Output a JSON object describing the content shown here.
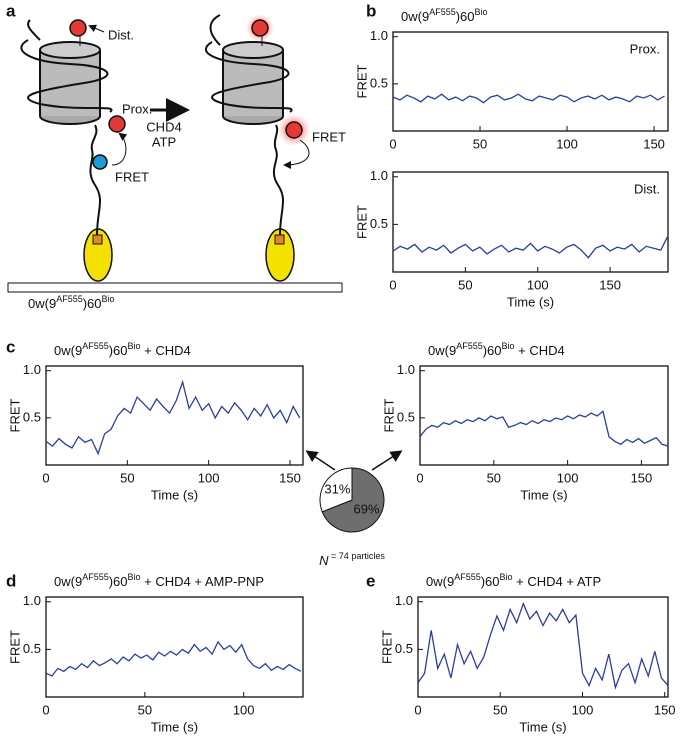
{
  "panel_labels": [
    "a",
    "b",
    "c",
    "d",
    "e"
  ],
  "diagram": {
    "dist": "Dist.",
    "prox": "Prox.",
    "enzyme": "CHD4",
    "nucleotide": "ATP",
    "fret_left": "FRET",
    "fret_right": "FRET",
    "substrate_parts": [
      "0w(9",
      "AF555",
      ")60",
      "Bio"
    ]
  },
  "chart_data": [
    {
      "type": "line",
      "title_parts": [
        "0w(9",
        "AF555",
        ")60",
        "Bio"
      ],
      "annotation": "Prox.",
      "ylabel": "FRET",
      "color": "#2c3e9c",
      "x": [
        0,
        4,
        8,
        12,
        16,
        20,
        24,
        28,
        32,
        36,
        40,
        44,
        48,
        52,
        56,
        60,
        64,
        68,
        72,
        76,
        80,
        84,
        88,
        92,
        96,
        100,
        104,
        108,
        112,
        116,
        120,
        124,
        128,
        132,
        136,
        140,
        144,
        148,
        152,
        156
      ],
      "values": [
        0.36,
        0.33,
        0.38,
        0.35,
        0.31,
        0.37,
        0.34,
        0.39,
        0.33,
        0.36,
        0.32,
        0.37,
        0.35,
        0.3,
        0.36,
        0.38,
        0.33,
        0.35,
        0.39,
        0.34,
        0.32,
        0.37,
        0.35,
        0.33,
        0.38,
        0.36,
        0.31,
        0.35,
        0.37,
        0.34,
        0.38,
        0.33,
        0.36,
        0.34,
        0.31,
        0.37,
        0.35,
        0.38,
        0.33,
        0.37
      ],
      "xlim": [
        0,
        158
      ],
      "ylim": [
        0,
        1.05
      ],
      "xticks": [
        0,
        50,
        100,
        150
      ],
      "yticks": [
        0.5,
        {
          "value": 1,
          "label": "1.0"
        }
      ]
    },
    {
      "type": "line",
      "title_parts": [],
      "annotation": "Dist.",
      "ylabel": "FRET",
      "xlabel": "Time (s)",
      "color": "#2c3e9c",
      "x": [
        0,
        5,
        10,
        15,
        20,
        25,
        30,
        35,
        40,
        45,
        50,
        55,
        60,
        65,
        70,
        75,
        80,
        85,
        90,
        95,
        100,
        105,
        110,
        115,
        120,
        125,
        130,
        135,
        140,
        145,
        150,
        155,
        160,
        165,
        170,
        175,
        180,
        185,
        190
      ],
      "values": [
        0.22,
        0.27,
        0.24,
        0.29,
        0.21,
        0.26,
        0.23,
        0.28,
        0.2,
        0.25,
        0.29,
        0.22,
        0.26,
        0.19,
        0.24,
        0.28,
        0.21,
        0.25,
        0.23,
        0.3,
        0.22,
        0.27,
        0.24,
        0.2,
        0.26,
        0.29,
        0.23,
        0.15,
        0.25,
        0.28,
        0.22,
        0.26,
        0.24,
        0.29,
        0.21,
        0.27,
        0.25,
        0.23,
        0.38
      ],
      "xlim": [
        0,
        190
      ],
      "ylim": [
        0,
        1.05
      ],
      "xticks": [
        0,
        50,
        100,
        150
      ],
      "yticks": [
        0.5,
        {
          "value": 1,
          "label": "1.0"
        }
      ]
    },
    {
      "type": "line",
      "title_parts": [
        "0w(9",
        "AF555",
        ")60",
        "Bio",
        " + CHD4"
      ],
      "ylabel": "FRET",
      "xlabel": "Time (s)",
      "color": "#2c3e9c",
      "x": [
        0,
        4,
        8,
        12,
        16,
        20,
        24,
        28,
        32,
        36,
        40,
        44,
        48,
        52,
        56,
        60,
        64,
        68,
        72,
        76,
        80,
        84,
        88,
        92,
        96,
        100,
        104,
        108,
        112,
        116,
        120,
        124,
        128,
        132,
        136,
        140,
        144,
        148,
        152,
        156
      ],
      "values": [
        0.25,
        0.2,
        0.28,
        0.22,
        0.18,
        0.3,
        0.24,
        0.27,
        0.12,
        0.33,
        0.38,
        0.52,
        0.6,
        0.55,
        0.72,
        0.65,
        0.58,
        0.7,
        0.62,
        0.55,
        0.68,
        0.88,
        0.6,
        0.72,
        0.58,
        0.65,
        0.5,
        0.62,
        0.55,
        0.66,
        0.58,
        0.48,
        0.6,
        0.52,
        0.64,
        0.5,
        0.58,
        0.45,
        0.62,
        0.5
      ],
      "xlim": [
        0,
        158
      ],
      "ylim": [
        0,
        1.05
      ],
      "xticks": [
        0,
        50,
        100,
        150
      ],
      "yticks": [
        0.5,
        {
          "value": 1,
          "label": "1.0"
        }
      ]
    },
    {
      "type": "line",
      "title_parts": [
        "0w(9",
        "AF555",
        ")60",
        "Bio",
        " + CHD4"
      ],
      "ylabel": "FRET",
      "xlabel": "Time (s)",
      "color": "#2c3e9c",
      "x": [
        0,
        4,
        8,
        12,
        16,
        20,
        24,
        28,
        32,
        36,
        40,
        44,
        48,
        52,
        56,
        60,
        64,
        68,
        72,
        76,
        80,
        84,
        88,
        92,
        96,
        100,
        104,
        108,
        112,
        116,
        120,
        124,
        128,
        132,
        136,
        140,
        144,
        148,
        152,
        156,
        160,
        164,
        168
      ],
      "values": [
        0.3,
        0.38,
        0.42,
        0.4,
        0.45,
        0.43,
        0.47,
        0.44,
        0.48,
        0.46,
        0.5,
        0.47,
        0.52,
        0.49,
        0.51,
        0.4,
        0.42,
        0.45,
        0.43,
        0.47,
        0.44,
        0.48,
        0.46,
        0.5,
        0.48,
        0.52,
        0.49,
        0.53,
        0.51,
        0.55,
        0.52,
        0.57,
        0.3,
        0.25,
        0.22,
        0.27,
        0.24,
        0.28,
        0.23,
        0.26,
        0.29,
        0.22,
        0.2
      ],
      "xlim": [
        0,
        168
      ],
      "ylim": [
        0,
        1.05
      ],
      "xticks": [
        0,
        50,
        100,
        150
      ],
      "yticks": [
        0.5,
        {
          "value": 1,
          "label": "1.0"
        }
      ]
    },
    {
      "type": "line",
      "title_parts": [
        "0w(9",
        "AF555",
        ")60",
        "Bio",
        " + CHD4 + AMP-PNP"
      ],
      "ylabel": "FRET",
      "xlabel": "Time (s)",
      "color": "#2c3e9c",
      "x": [
        0,
        3,
        6,
        9,
        12,
        15,
        18,
        21,
        24,
        27,
        30,
        33,
        36,
        39,
        42,
        45,
        48,
        51,
        54,
        57,
        60,
        63,
        66,
        69,
        72,
        75,
        78,
        81,
        84,
        87,
        90,
        93,
        96,
        99,
        102,
        105,
        108,
        111,
        114,
        117,
        120,
        123,
        126,
        129
      ],
      "values": [
        0.25,
        0.22,
        0.3,
        0.27,
        0.32,
        0.29,
        0.35,
        0.31,
        0.38,
        0.33,
        0.36,
        0.4,
        0.35,
        0.42,
        0.38,
        0.45,
        0.41,
        0.44,
        0.39,
        0.47,
        0.43,
        0.48,
        0.44,
        0.5,
        0.46,
        0.55,
        0.48,
        0.52,
        0.45,
        0.58,
        0.5,
        0.54,
        0.47,
        0.55,
        0.4,
        0.33,
        0.3,
        0.35,
        0.28,
        0.32,
        0.29,
        0.34,
        0.3,
        0.27
      ],
      "xlim": [
        0,
        130
      ],
      "ylim": [
        0,
        1.05
      ],
      "xticks": [
        0,
        50,
        100
      ],
      "yticks": [
        0.5,
        {
          "value": 1,
          "label": "1.0"
        }
      ]
    },
    {
      "type": "line",
      "title_parts": [
        "0w(9",
        "AF555",
        ")60",
        "Bio",
        " + CHD4 + ATP"
      ],
      "ylabel": "FRET",
      "xlabel": "Time (s)",
      "color": "#2c3e9c",
      "x": [
        0,
        4,
        8,
        12,
        16,
        20,
        24,
        28,
        32,
        36,
        40,
        44,
        48,
        52,
        56,
        60,
        64,
        68,
        72,
        76,
        80,
        84,
        88,
        92,
        96,
        100,
        104,
        108,
        112,
        116,
        120,
        124,
        128,
        132,
        136,
        140,
        144,
        148,
        152
      ],
      "values": [
        0.15,
        0.25,
        0.7,
        0.3,
        0.45,
        0.2,
        0.55,
        0.35,
        0.48,
        0.3,
        0.42,
        0.65,
        0.85,
        0.7,
        0.92,
        0.78,
        0.98,
        0.82,
        0.9,
        0.75,
        0.88,
        0.8,
        0.92,
        0.78,
        0.86,
        0.25,
        0.12,
        0.3,
        0.18,
        0.45,
        0.1,
        0.28,
        0.35,
        0.15,
        0.4,
        0.22,
        0.48,
        0.2,
        0.12
      ],
      "xlim": [
        0,
        152
      ],
      "ylim": [
        0,
        1.05
      ],
      "xticks": [
        0,
        50,
        100,
        150
      ],
      "yticks": [
        0.5,
        {
          "value": 1,
          "label": "1.0"
        }
      ]
    },
    {
      "type": "pie",
      "values": [
        69,
        31
      ],
      "value_labels": [
        "69%",
        "31%"
      ],
      "colors": [
        "#6e6e6e",
        "#ffffff"
      ],
      "note_parts": [
        "N",
        " = 74 particles"
      ]
    }
  ]
}
